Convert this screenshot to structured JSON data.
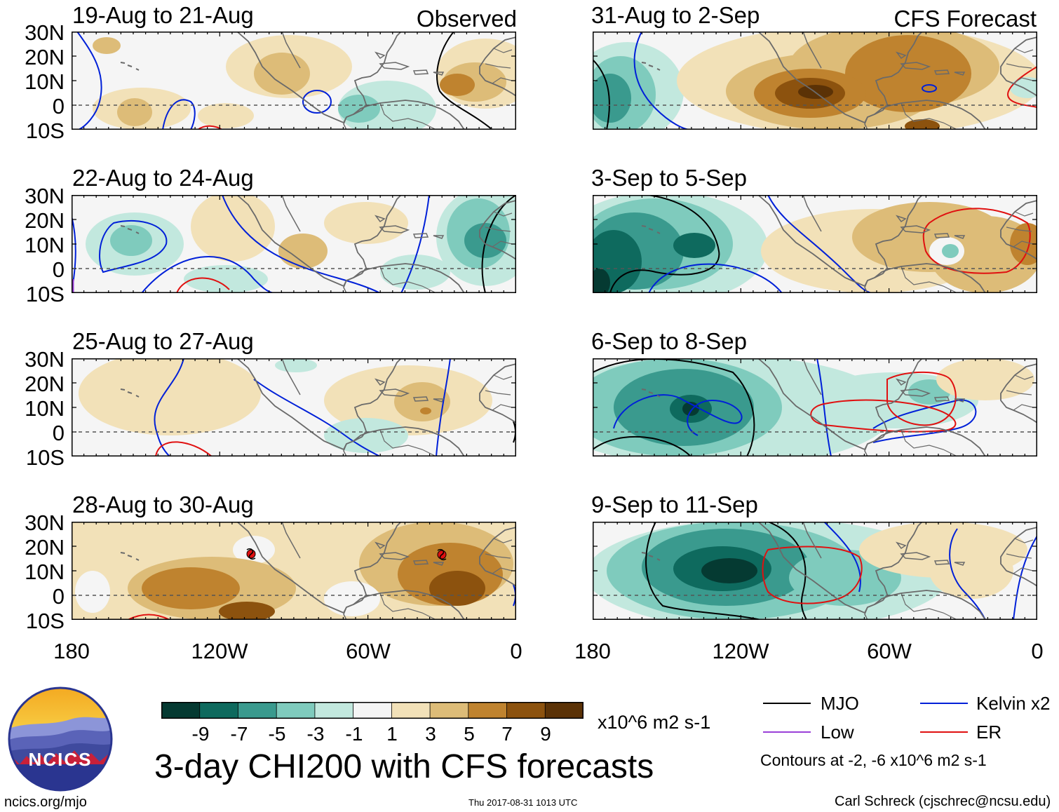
{
  "left_tag": "Observed",
  "right_tag": "CFS Forecast",
  "panels": [
    {
      "title": "19-Aug to 21-Aug",
      "anomaly": "mixed"
    },
    {
      "title": "22-Aug to 24-Aug",
      "anomaly": "mixed"
    },
    {
      "title": "25-Aug to 27-Aug",
      "anomaly": "weak-dry"
    },
    {
      "title": "28-Aug to 30-Aug",
      "anomaly": "dry"
    },
    {
      "title": "31-Aug to 2-Sep",
      "anomaly": "dry"
    },
    {
      "title": "3-Sep to 5-Sep",
      "anomaly": "wet-east-pacific"
    },
    {
      "title": "6-Sep to 8-Sep",
      "anomaly": "wet"
    },
    {
      "title": "9-Sep to 11-Sep",
      "anomaly": "wet"
    }
  ],
  "lat_labels": [
    "30N",
    "20N",
    "10N",
    "0",
    "10S"
  ],
  "lon_labels": [
    "180",
    "120W",
    "60W",
    "0"
  ],
  "colorbar": {
    "colors": [
      "#053a32",
      "#0e6a5e",
      "#3a9a8e",
      "#7fcbbd",
      "#c2e8de",
      "#f5f5f5",
      "#f2e1b8",
      "#ddbc78",
      "#bf832f",
      "#8c520e",
      "#5b3206"
    ],
    "labels": [
      "-9",
      "-7",
      "-5",
      "-3",
      "-1",
      "1",
      "3",
      "5",
      "7",
      "9"
    ],
    "units": "x10^6 m2 s-1"
  },
  "main_title": "3-day CHI200 with CFS forecasts",
  "legend": [
    {
      "label": "MJO",
      "color": "#000000"
    },
    {
      "label": "Kelvin x2",
      "color": "#0020d8"
    },
    {
      "label": "Low",
      "color": "#9a40d8"
    },
    {
      "label": "ER",
      "color": "#e01010"
    }
  ],
  "contour_note": "Contours at -2, -6 x10^6 m2 s-1",
  "logo_text": "NCICS",
  "footer": {
    "left": "ncics.org/mjo",
    "center": "Thu 2017-08-31 1013 UTC",
    "right": "Carl Schreck (cjschrec@ncsu.edu)"
  }
}
